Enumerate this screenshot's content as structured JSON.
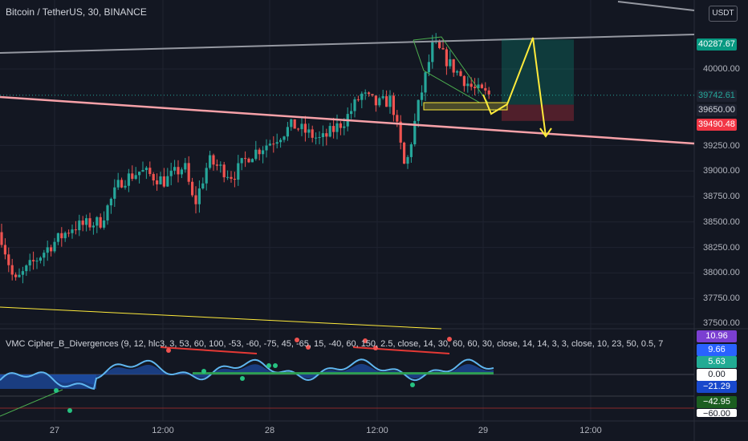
{
  "header": {
    "symbol_title": "Bitcoin / TetherUS, 30, BINANCE",
    "currency_label": "USDT"
  },
  "indicator": {
    "title": "VMC Cipher_B_Divergences (9, 12, hlc3, 3, 53, 60, 100, -53, -60, -75, 45, -65, 15, -40, 60, 150, 2.5, close, 14, 30, 60, 60, 30, close, 14, 14, 3, 3, close, 10, 23, 50, 0.5, 7"
  },
  "price_axis": {
    "ticks": [
      "40000.00",
      "39250.00",
      "39000.00",
      "38750.00",
      "38500.00",
      "38250.00",
      "38000.00",
      "37750.00",
      "37500.00"
    ],
    "labels": [
      {
        "value": "40287.67",
        "color": "#089981",
        "text_color": "#ffffff"
      },
      {
        "value": "39742.61",
        "color": "#1e2230",
        "text_color": "#26a69a"
      },
      {
        "value": "39650.00",
        "color": "#1e2230",
        "text_color": "#d1d4dc"
      },
      {
        "value": "39490.48",
        "color": "#f23645",
        "text_color": "#ffffff"
      }
    ]
  },
  "oscillator_axis": {
    "labels": [
      {
        "value": "10.96",
        "color": "#7b3fd1",
        "text_color": "#ffffff"
      },
      {
        "value": "9.66",
        "color": "#2962ff",
        "text_color": "#ffffff"
      },
      {
        "value": "5.63",
        "color": "#22ab94",
        "text_color": "#ffffff"
      },
      {
        "value": "0.00",
        "color": "#ffffff",
        "text_color": "#131722"
      },
      {
        "value": "−21.29",
        "color": "#1848cc",
        "text_color": "#ffffff"
      },
      {
        "value": "−42.95",
        "color": "#1b5e20",
        "text_color": "#ffffff"
      },
      {
        "value": "−60.00",
        "color": "#ffffff",
        "text_color": "#131722"
      }
    ]
  },
  "time_axis": {
    "ticks": [
      "27",
      "12:00",
      "28",
      "12:00",
      "29",
      "12:00"
    ]
  },
  "colors": {
    "up": "#26a69a",
    "down": "#ef5350",
    "background": "#131722",
    "resistance_line": "#9598a1",
    "support_line": "#f7a1a8",
    "projection": "#ffeb3b",
    "wedge": "#4caf50"
  },
  "chart_data": {
    "type": "candlestick",
    "symbol": "Bitcoin / TetherUS",
    "interval": "30",
    "exchange": "BINANCE",
    "price_range": [
      37470,
      40720
    ],
    "ohlc_overview": [
      {
        "time": "27",
        "close": 38150
      },
      {
        "time": "27 12:00",
        "close": 38900
      },
      {
        "time": "28",
        "close": 39300
      },
      {
        "time": "28 12:00",
        "close": 39650
      },
      {
        "time": "28 late",
        "close": 40150
      },
      {
        "time": "29",
        "close": 39742.61
      }
    ],
    "current_price": 39742.61,
    "trade_setup": {
      "target": 40287.67,
      "entry": 39650.0,
      "stop": 39490.48
    }
  }
}
